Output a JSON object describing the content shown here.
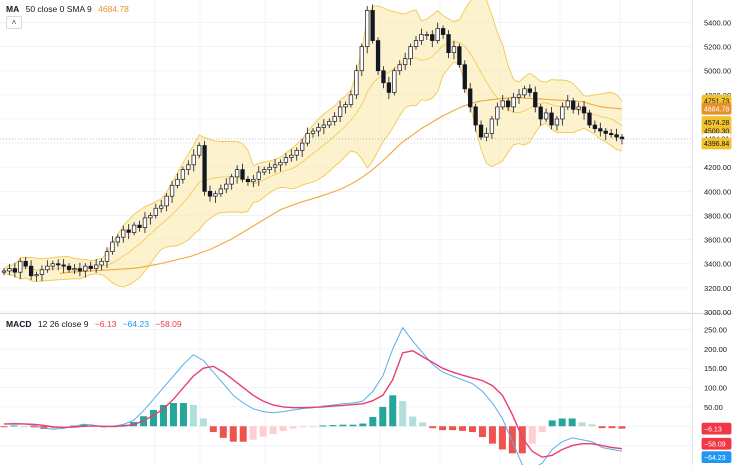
{
  "legends": {
    "ma": {
      "name": "MA",
      "params": "50 close 0 SMA 9",
      "value": "4684.78",
      "value_color": "#e8912a"
    },
    "macd": {
      "name": "MACD",
      "params": "12 26 close 9",
      "v1": "−6.13",
      "v2": "−64.23",
      "v3": "−58.09",
      "c1": "#f23645",
      "c2": "#2196f3",
      "c3": "#f23645"
    }
  },
  "collapse_icon": "˄",
  "colors": {
    "up": "#26a69a",
    "down": "#ef5350",
    "ma": "#f2a93b",
    "band": "#fbe8a6",
    "band_line": "#f2c94c",
    "macd_line": "#5aaee8",
    "signal_line": "#e83e73",
    "hist_up_strong": "#26a69a",
    "hist_up_weak": "#b2dfdb",
    "hist_down_strong": "#ef5350",
    "hist_down_weak": "#ffcdd2"
  },
  "chart_data": [
    {
      "type": "candlestick",
      "title": "",
      "yaxis_ticks": [
        "5400.00",
        "5200.00",
        "5000.00",
        "4800.00",
        "4600.00",
        "4400.00",
        "4200.00",
        "4000.00",
        "3800.00",
        "3600.00",
        "3400.00",
        "3200.00",
        "3000.00"
      ],
      "ylim": [
        3000,
        5520
      ],
      "price_tags": [
        {
          "label": "4751.73",
          "bg": "#f2c12e",
          "fg": "#131722"
        },
        {
          "label": "4684.78",
          "bg": "#e8912a",
          "fg": "#ffffff"
        },
        {
          "label": "4574.28",
          "bg": "#f2c12e",
          "fg": "#131722"
        },
        {
          "label": "4500.30",
          "bg": "#f2c12e",
          "fg": "#131722"
        },
        {
          "label": "4434.81",
          "bg": "#ffffff",
          "fg": "#131722"
        },
        {
          "label": "4396.84",
          "bg": "#f2c12e",
          "fg": "#131722"
        }
      ],
      "series": [
        {
          "name": "Price",
          "close": [
            3340,
            3360,
            3330,
            3420,
            3380,
            3300,
            3310,
            3350,
            3380,
            3400,
            3390,
            3380,
            3350,
            3360,
            3340,
            3380,
            3360,
            3390,
            3420,
            3500,
            3580,
            3620,
            3680,
            3660,
            3720,
            3700,
            3780,
            3800,
            3860,
            3880,
            3960,
            4050,
            4100,
            4180,
            4220,
            4300,
            4380,
            4000,
            3960,
            3980,
            4020,
            4060,
            4120,
            4180,
            4100,
            4080,
            4100,
            4160,
            4180,
            4200,
            4220,
            4240,
            4280,
            4300,
            4340,
            4400,
            4480,
            4500,
            4530,
            4550,
            4580,
            4620,
            4700,
            4720,
            4800,
            5000,
            5200,
            5500,
            5250,
            5000,
            4900,
            4820,
            5000,
            5050,
            5100,
            5200,
            5250,
            5300,
            5300,
            5250,
            5350,
            5300,
            5150,
            5200,
            5050,
            4850,
            4700,
            4550,
            4450,
            4480,
            4600,
            4700,
            4750,
            4700,
            4780,
            4800,
            4850,
            4820,
            4700,
            4600,
            4650,
            4550,
            4600,
            4700,
            4750,
            4680,
            4700,
            4650,
            4550,
            4520,
            4500,
            4480,
            4470,
            4450,
            4435
          ]
        },
        {
          "name": "MA 50",
          "close": [
            3320,
            3330,
            3335,
            3340,
            3345,
            3350,
            3355,
            3360,
            3370,
            3385,
            3400,
            3420,
            3440,
            3460,
            3490,
            3520,
            3560,
            3600,
            3650,
            3700,
            3750,
            3800,
            3850,
            3880,
            3910,
            3935,
            3960,
            3990,
            4020,
            4060,
            4110,
            4170,
            4240,
            4320,
            4400,
            4460,
            4520,
            4570,
            4620,
            4660,
            4700,
            4730,
            4750,
            4760,
            4770,
            4775,
            4775,
            4770,
            4765,
            4760,
            4755,
            4750,
            4745,
            4720,
            4700,
            4690,
            4684.78
          ]
        }
      ]
    },
    {
      "type": "bar+line",
      "title": "",
      "yaxis_ticks": [
        "250.00",
        "200.00",
        "150.00",
        "100.00",
        "50.00",
        "0.00",
        "−50.00"
      ],
      "ylim": [
        -95,
        285
      ],
      "price_tags": [
        {
          "label": "−6.13",
          "bg": "#f23645",
          "fg": "#ffffff"
        },
        {
          "label": "−58.09",
          "bg": "#f23645",
          "fg": "#ffffff"
        },
        {
          "label": "−64.23",
          "bg": "#2196f3",
          "fg": "#ffffff"
        }
      ],
      "series": [
        {
          "name": "MACD",
          "values": [
            5,
            8,
            6,
            2,
            -5,
            -8,
            -5,
            0,
            5,
            3,
            -2,
            0,
            5,
            15,
            40,
            70,
            100,
            130,
            160,
            185,
            170,
            140,
            110,
            80,
            60,
            45,
            38,
            35,
            38,
            42,
            46,
            48,
            52,
            55,
            58,
            60,
            65,
            90,
            130,
            200,
            255,
            220,
            190,
            160,
            140,
            130,
            120,
            110,
            90,
            60,
            20,
            -40,
            -100,
            -110,
            -95,
            -60,
            -40,
            -30,
            -35,
            -40,
            -55,
            -60,
            -64.23
          ]
        },
        {
          "name": "Signal",
          "values": [
            6,
            6,
            6,
            5,
            2,
            -2,
            -3,
            -2,
            0,
            1,
            0,
            0,
            1,
            4,
            14,
            28,
            45,
            70,
            100,
            130,
            150,
            155,
            140,
            120,
            100,
            80,
            65,
            55,
            50,
            48,
            48,
            49,
            50,
            52,
            54,
            56,
            58,
            66,
            80,
            120,
            190,
            195,
            180,
            165,
            150,
            140,
            132,
            125,
            118,
            105,
            80,
            30,
            -30,
            -65,
            -80,
            -75,
            -60,
            -50,
            -45,
            -45,
            -50,
            -55,
            -58.09
          ]
        }
      ],
      "histogram": [
        -1,
        2,
        0,
        -3,
        -7,
        -6,
        -2,
        2,
        5,
        2,
        -2,
        0,
        4,
        11,
        26,
        42,
        55,
        60,
        60,
        55,
        20,
        -15,
        -30,
        -40,
        -40,
        -35,
        -27,
        -20,
        -12,
        -6,
        -2,
        -1,
        2,
        3,
        4,
        4,
        7,
        24,
        50,
        80,
        65,
        25,
        10,
        -5,
        -10,
        -10,
        -12,
        -15,
        -28,
        -45,
        -60,
        -70,
        -70,
        -45,
        -15,
        15,
        20,
        20,
        10,
        5,
        -5,
        -5,
        -6.13
      ]
    }
  ]
}
